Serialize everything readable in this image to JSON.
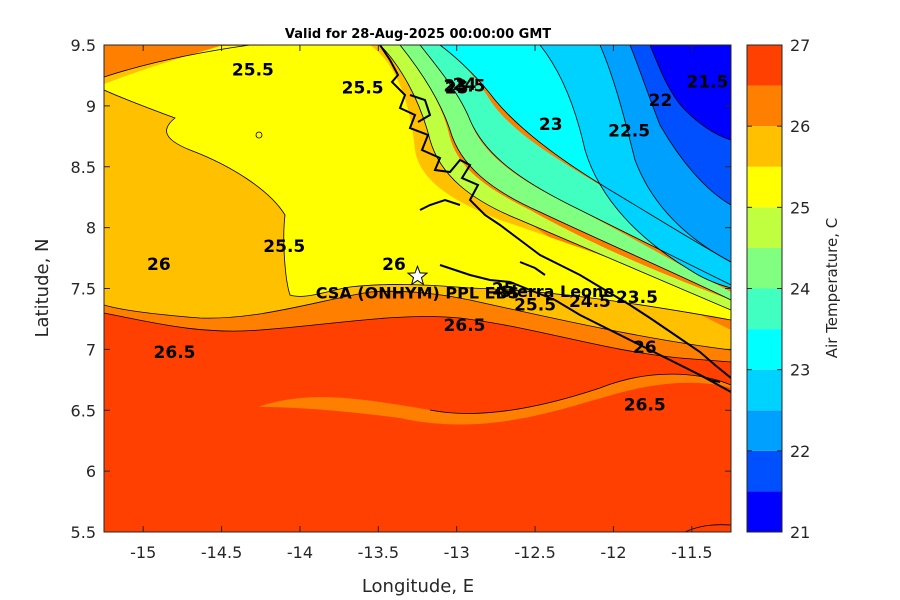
{
  "chart_data": {
    "type": "heatmap",
    "title": "Valid for 28-Aug-2025 00:00:00 GMT",
    "xlabel": "Longitude, E",
    "ylabel": "Latitude, N",
    "xlim": [
      -15.25,
      -11.25
    ],
    "ylim": [
      5.5,
      9.5
    ],
    "x_ticks": [
      "-15",
      "-14.5",
      "-14",
      "-13.5",
      "-13",
      "-12.5",
      "-12",
      "-11.5"
    ],
    "x_tick_values": [
      -15,
      -14.5,
      -14,
      -13.5,
      -13,
      -12.5,
      -12,
      -11.5
    ],
    "y_ticks": [
      "5.5",
      "6",
      "6.5",
      "7",
      "7.5",
      "8",
      "8.5",
      "9",
      "9.5"
    ],
    "y_tick_values": [
      5.5,
      6,
      6.5,
      7,
      7.5,
      8,
      8.5,
      9,
      9.5
    ],
    "colorbar": {
      "label": "Air Temperature, C",
      "range": [
        21,
        27
      ],
      "ticks": [
        "21",
        "22",
        "23",
        "24",
        "25",
        "26",
        "27"
      ],
      "tick_values": [
        21,
        22,
        23,
        24,
        25,
        26,
        27
      ],
      "levels": [
        21,
        21.5,
        22,
        22.5,
        23,
        23.5,
        24,
        24.5,
        25,
        25.5,
        26,
        26.5,
        27
      ],
      "colors": [
        "#0000ff",
        "#0050ff",
        "#00a0ff",
        "#00d2ff",
        "#00ffff",
        "#40ffc0",
        "#80ff80",
        "#c0ff40",
        "#ffff00",
        "#ffc000",
        "#ff8000",
        "#ff4000"
      ]
    },
    "contour_labels": [
      {
        "text": "25.5",
        "lon": -14.3,
        "lat": 9.25
      },
      {
        "text": "25.5",
        "lon": -13.6,
        "lat": 9.1
      },
      {
        "text": "25",
        "lon": -13.0,
        "lat": 9.1
      },
      {
        "text": "24",
        "lon": -12.95,
        "lat": 9.13
      },
      {
        "text": "23.5",
        "lon": -12.95,
        "lat": 9.12
      },
      {
        "text": "23",
        "lon": -12.4,
        "lat": 8.8
      },
      {
        "text": "22.5",
        "lon": -11.9,
        "lat": 8.75
      },
      {
        "text": "22",
        "lon": -11.7,
        "lat": 9.0
      },
      {
        "text": "21.5",
        "lon": -11.4,
        "lat": 9.15
      },
      {
        "text": "25.5",
        "lon": -14.1,
        "lat": 7.8
      },
      {
        "text": "26",
        "lon": -14.9,
        "lat": 7.65
      },
      {
        "text": "26",
        "lon": -13.4,
        "lat": 7.65
      },
      {
        "text": "26.5",
        "lon": -12.95,
        "lat": 7.15
      },
      {
        "text": "26.5",
        "lon": -14.8,
        "lat": 6.93
      },
      {
        "text": "26",
        "lon": -11.8,
        "lat": 6.97
      },
      {
        "text": "26.5",
        "lon": -11.8,
        "lat": 6.5
      },
      {
        "text": "25",
        "lon": -12.7,
        "lat": 7.45
      },
      {
        "text": "25.5",
        "lon": -12.5,
        "lat": 7.32
      },
      {
        "text": "24.5",
        "lon": -12.15,
        "lat": 7.35
      },
      {
        "text": "23.5",
        "lon": -11.85,
        "lat": 7.38
      }
    ],
    "site": {
      "name": "CSA (ONHYM) PPL EBS",
      "lon": -13.25,
      "lat": 7.6,
      "marker": "star"
    },
    "country_label": "Sierra Leone",
    "grid": false,
    "legend": "none"
  }
}
